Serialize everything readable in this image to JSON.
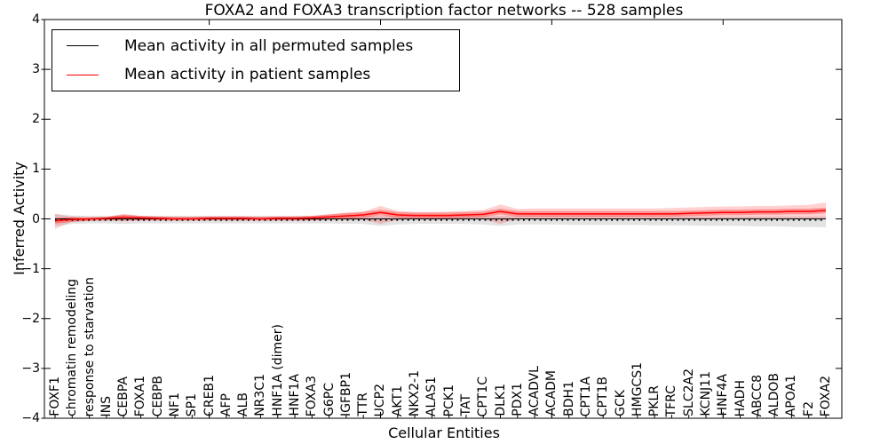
{
  "title": "FOXA2 and FOXA3 transcription factor networks -- 528 samples",
  "axes": {
    "x_label": "Cellular Entities",
    "y_label": "Inferred Activity"
  },
  "legend": {
    "entries": [
      {
        "label": "Mean activity in all permuted samples",
        "color": "#000000"
      },
      {
        "label": "Mean activity in patient samples",
        "color": "#ff0000"
      }
    ]
  },
  "chart_data": {
    "type": "line",
    "title": "FOXA2 and FOXA3 transcription factor networks -- 528 samples",
    "xlabel": "Cellular Entities",
    "ylabel": "Inferred Activity",
    "ylim": [
      -4,
      4
    ],
    "grid": false,
    "legend_position": "upper left",
    "y_tick_labels": [
      "4",
      "3",
      "2",
      "1",
      "0",
      "−1",
      "−2",
      "−3",
      "−4"
    ],
    "y_tick_values": [
      4,
      3,
      2,
      1,
      0,
      -1,
      -2,
      -3,
      -4
    ],
    "x_major_tick_indices": [
      9,
      19,
      29,
      39
    ],
    "categories": [
      "FOXF1",
      "chromatin remodeling",
      "response to starvation",
      "INS",
      "CEBPA",
      "FOXA1",
      "CEBPB",
      "NF1",
      "SP1",
      "CREB1",
      "AFP",
      "ALB",
      "NR3C1",
      "HNF1A (dimer)",
      "HNF1A",
      "FOXA3",
      "G6PC",
      "IGFBP1",
      "TTR",
      "UCP2",
      "AKT1",
      "NKX2-1",
      "ALAS1",
      "PCK1",
      "TAT",
      "CPT1C",
      "DLK1",
      "PDX1",
      "ACADVL",
      "ACADM",
      "BDH1",
      "CPT1A",
      "CPT1B",
      "GCK",
      "HMGCS1",
      "PKLR",
      "TFRC",
      "SLC2A2",
      "KCNJ11",
      "HNF4A",
      "HADH",
      "ABCC8",
      "ALDOB",
      "APOA1",
      "F2",
      "FOXA2"
    ],
    "series": [
      {
        "name": "Mean activity in all permuted samples",
        "color": "#000000",
        "band_color": "rgba(0,0,0,0.11)",
        "values": [
          0,
          0,
          0,
          0,
          0,
          0,
          0,
          0,
          0,
          0,
          0,
          0,
          0,
          0,
          0,
          0,
          0,
          0,
          0,
          0,
          0,
          0,
          0,
          0,
          0,
          0,
          0,
          0,
          0,
          0,
          0,
          0,
          0,
          0,
          0,
          0,
          0,
          0,
          0,
          0,
          0,
          0,
          0,
          0,
          0,
          0
        ],
        "band_upper": [
          0.1,
          0.07,
          0.06,
          0.06,
          0.07,
          0.06,
          0.06,
          0.06,
          0.06,
          0.06,
          0.06,
          0.06,
          0.06,
          0.06,
          0.06,
          0.06,
          0.06,
          0.06,
          0.06,
          0.06,
          0.06,
          0.06,
          0.06,
          0.06,
          0.06,
          0.06,
          0.06,
          0.06,
          0.06,
          0.06,
          0.06,
          0.06,
          0.06,
          0.06,
          0.05,
          0.05,
          0.05,
          0.05,
          0.05,
          0.05,
          0.05,
          0.05,
          0.05,
          0.05,
          0.05,
          0.05
        ],
        "band_lower": [
          -0.14,
          -0.1,
          -0.09,
          -0.09,
          -0.1,
          -0.09,
          -0.09,
          -0.09,
          -0.09,
          -0.09,
          -0.09,
          -0.09,
          -0.09,
          -0.09,
          -0.09,
          -0.09,
          -0.09,
          -0.1,
          -0.1,
          -0.14,
          -0.11,
          -0.1,
          -0.1,
          -0.1,
          -0.1,
          -0.11,
          -0.14,
          -0.11,
          -0.11,
          -0.11,
          -0.12,
          -0.12,
          -0.12,
          -0.12,
          -0.12,
          -0.13,
          -0.13,
          -0.13,
          -0.14,
          -0.14,
          -0.14,
          -0.15,
          -0.15,
          -0.16,
          -0.16,
          -0.17
        ]
      },
      {
        "name": "Mean activity in patient samples",
        "color": "#ff0000",
        "band_color": "rgba(255,0,0,0.18)",
        "inner_band_color": "rgba(255,0,0,0.30)",
        "values": [
          -0.04,
          -0.01,
          0.0,
          0.01,
          0.03,
          0.02,
          0.01,
          0.0,
          0.0,
          0.01,
          0.01,
          0.01,
          0.0,
          0.01,
          0.01,
          0.02,
          0.04,
          0.06,
          0.08,
          0.13,
          0.08,
          0.07,
          0.07,
          0.07,
          0.08,
          0.09,
          0.15,
          0.1,
          0.1,
          0.1,
          0.1,
          0.1,
          0.1,
          0.1,
          0.1,
          0.1,
          0.1,
          0.11,
          0.12,
          0.13,
          0.13,
          0.14,
          0.14,
          0.15,
          0.15,
          0.17
        ],
        "band_upper": [
          0.1,
          0.04,
          0.03,
          0.04,
          0.1,
          0.06,
          0.05,
          0.04,
          0.04,
          0.05,
          0.05,
          0.05,
          0.04,
          0.05,
          0.05,
          0.06,
          0.09,
          0.13,
          0.15,
          0.26,
          0.16,
          0.14,
          0.14,
          0.15,
          0.16,
          0.18,
          0.29,
          0.2,
          0.21,
          0.21,
          0.21,
          0.21,
          0.21,
          0.21,
          0.21,
          0.21,
          0.22,
          0.23,
          0.24,
          0.25,
          0.25,
          0.26,
          0.26,
          0.27,
          0.28,
          0.33
        ],
        "band_lower": [
          -0.2,
          -0.06,
          -0.04,
          -0.03,
          -0.05,
          -0.03,
          -0.03,
          -0.03,
          -0.03,
          -0.03,
          -0.03,
          -0.03,
          -0.03,
          -0.03,
          -0.03,
          -0.03,
          -0.02,
          -0.02,
          -0.02,
          -0.1,
          -0.02,
          -0.01,
          -0.01,
          -0.01,
          -0.01,
          -0.01,
          -0.1,
          0.0,
          0.0,
          0.0,
          0.0,
          0.0,
          0.0,
          0.0,
          0.0,
          0.0,
          0.0,
          0.0,
          0.0,
          0.01,
          0.01,
          0.01,
          0.01,
          0.01,
          0.01,
          0.0
        ]
      }
    ],
    "zero_dotted_line": {
      "y": -0.025,
      "color": "#000000",
      "style": "dotted"
    }
  }
}
